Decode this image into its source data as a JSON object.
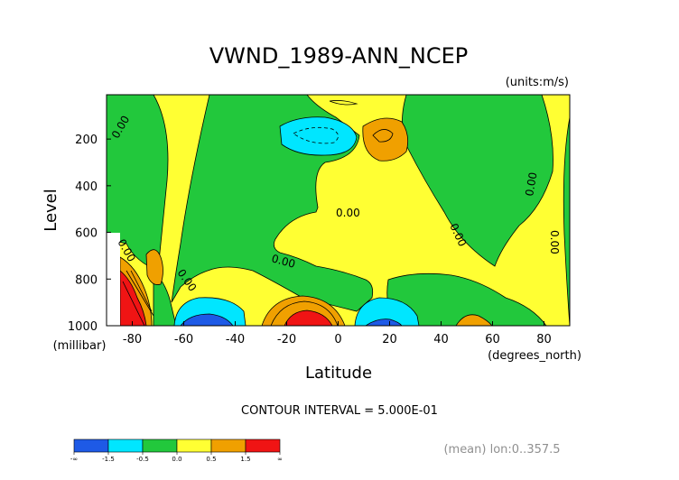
{
  "chart_data": {
    "type": "heatmap",
    "title": "VWND_1989-ANN_NCEP",
    "units": "(units:m/s)",
    "xlabel": "Latitude",
    "xunits": "(degrees_north)",
    "ylabel": "Level",
    "yunits": "(millibar)",
    "xlim": [
      -90,
      90
    ],
    "ylim": [
      1000,
      10
    ],
    "x_ticks": [
      -80,
      -60,
      -40,
      -20,
      0,
      20,
      40,
      60,
      80
    ],
    "y_ticks": [
      200,
      400,
      600,
      800,
      1000
    ],
    "contour_interval_text": "CONTOUR INTERVAL = 5.000E-01",
    "footnote": "(mean) lon:0..357.5",
    "contour_labels": [
      "0.00",
      "0.00",
      "0.00",
      "0.00",
      "0.00",
      "0.00",
      "0.00",
      "0.00"
    ],
    "colorbar": {
      "labels": [
        "-∞",
        "-1.5",
        "-0.5",
        "0.0",
        "0.5",
        "1.5",
        "∞"
      ],
      "colors": [
        "#1e5ae6",
        "#00e6ff",
        "#22c83c",
        "#ffff33",
        "#f0a000",
        "#f01414"
      ]
    },
    "grid": false,
    "legend": "bottom-left"
  }
}
